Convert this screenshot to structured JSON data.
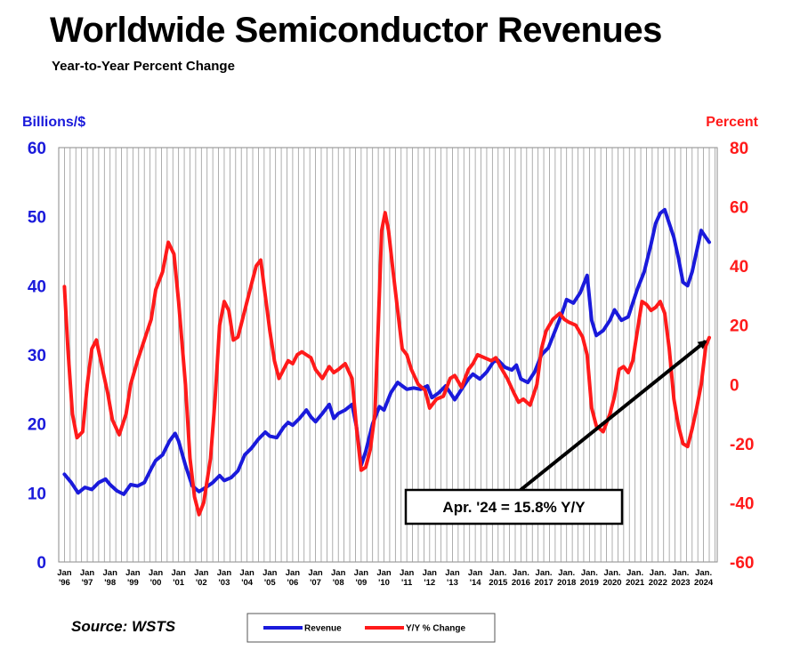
{
  "title": "Worldwide Semiconductor Revenues",
  "subtitle": "Year-to-Year Percent Change",
  "source": "Source: WSTS",
  "chart_data": {
    "type": "line",
    "title": "Worldwide Semiconductor Revenues",
    "subtitle": "Year-to-Year Percent Change",
    "left_axis": {
      "label": "Billions/$",
      "min": 0,
      "max": 60,
      "ticks": [
        "0",
        "10",
        "20",
        "30",
        "40",
        "50",
        "60"
      ],
      "color": "#1a1adb"
    },
    "right_axis": {
      "label": "Percent",
      "min": -60,
      "max": 80,
      "ticks": [
        "-60",
        "-40",
        "-20",
        "0",
        "20",
        "40",
        "60",
        "80"
      ],
      "color": "#ff1a1a"
    },
    "x_range": [
      1996.0,
      2024.25
    ],
    "x_ticks": [
      {
        "month": "Jan",
        "year": "'96"
      },
      {
        "month": "Jan",
        "year": "'97"
      },
      {
        "month": "Jan",
        "year": "'98"
      },
      {
        "month": "Jan",
        "year": "'99"
      },
      {
        "month": "Jan",
        "year": "'00"
      },
      {
        "month": "Jan",
        "year": "'01"
      },
      {
        "month": "Jan",
        "year": "'02"
      },
      {
        "month": "Jan",
        "year": "'03"
      },
      {
        "month": "Jan",
        "year": "'04"
      },
      {
        "month": "Jan",
        "year": "'05"
      },
      {
        "month": "Jan",
        "year": "'06"
      },
      {
        "month": "Jan",
        "year": "'07"
      },
      {
        "month": "Jan",
        "year": "'08"
      },
      {
        "month": "Jan",
        "year": "'09"
      },
      {
        "month": "Jan",
        "year": "'10"
      },
      {
        "month": "Jan",
        "year": "'11"
      },
      {
        "month": "Jan",
        "year": "'12"
      },
      {
        "month": "Jan",
        "year": "'13"
      },
      {
        "month": "Jan",
        "year": "'14"
      },
      {
        "month": "Jan.",
        "year": "2015"
      },
      {
        "month": "Jan.",
        "year": "2016"
      },
      {
        "month": "Jan.",
        "year": "2017"
      },
      {
        "month": "Jan.",
        "year": "2018"
      },
      {
        "month": "Jan.",
        "year": "2019"
      },
      {
        "month": "Jan.",
        "year": "2020"
      },
      {
        "month": "Jan.",
        "year": "2021"
      },
      {
        "month": "Jan.",
        "year": "2022"
      },
      {
        "month": "Jan.",
        "year": "2023"
      },
      {
        "month": "Jan.",
        "year": "2024"
      }
    ],
    "grid": "vertical",
    "series": [
      {
        "name": "Revenue",
        "axis": "left",
        "color": "#1a1adb",
        "points": [
          [
            1996.0,
            12.7
          ],
          [
            1996.3,
            11.5
          ],
          [
            1996.6,
            10.0
          ],
          [
            1996.9,
            10.8
          ],
          [
            1997.2,
            10.5
          ],
          [
            1997.5,
            11.5
          ],
          [
            1997.8,
            12.0
          ],
          [
            1998.0,
            11.2
          ],
          [
            1998.3,
            10.3
          ],
          [
            1998.6,
            9.8
          ],
          [
            1998.9,
            11.2
          ],
          [
            1999.2,
            11.0
          ],
          [
            1999.5,
            11.5
          ],
          [
            1999.8,
            13.5
          ],
          [
            2000.0,
            14.7
          ],
          [
            2000.3,
            15.5
          ],
          [
            2000.6,
            17.5
          ],
          [
            2000.85,
            18.6
          ],
          [
            2001.0,
            17.5
          ],
          [
            2001.3,
            14.0
          ],
          [
            2001.6,
            11.0
          ],
          [
            2001.9,
            10.2
          ],
          [
            2002.2,
            10.8
          ],
          [
            2002.5,
            11.5
          ],
          [
            2002.8,
            12.5
          ],
          [
            2003.0,
            11.8
          ],
          [
            2003.3,
            12.2
          ],
          [
            2003.6,
            13.2
          ],
          [
            2003.9,
            15.5
          ],
          [
            2004.2,
            16.5
          ],
          [
            2004.5,
            17.8
          ],
          [
            2004.8,
            18.8
          ],
          [
            2005.0,
            18.2
          ],
          [
            2005.3,
            18.0
          ],
          [
            2005.6,
            19.5
          ],
          [
            2005.8,
            20.2
          ],
          [
            2006.0,
            19.8
          ],
          [
            2006.3,
            20.8
          ],
          [
            2006.6,
            22.0
          ],
          [
            2006.8,
            21.0
          ],
          [
            2007.0,
            20.3
          ],
          [
            2007.3,
            21.5
          ],
          [
            2007.6,
            22.8
          ],
          [
            2007.8,
            20.8
          ],
          [
            2008.0,
            21.5
          ],
          [
            2008.3,
            22.0
          ],
          [
            2008.6,
            22.8
          ],
          [
            2008.8,
            19.5
          ],
          [
            2009.0,
            14.0
          ],
          [
            2009.2,
            16.0
          ],
          [
            2009.5,
            20.0
          ],
          [
            2009.8,
            22.5
          ],
          [
            2010.0,
            22.0
          ],
          [
            2010.3,
            24.5
          ],
          [
            2010.6,
            26.0
          ],
          [
            2010.8,
            25.5
          ],
          [
            2011.0,
            25.0
          ],
          [
            2011.3,
            25.2
          ],
          [
            2011.6,
            25.0
          ],
          [
            2011.9,
            25.5
          ],
          [
            2012.1,
            23.8
          ],
          [
            2012.4,
            24.5
          ],
          [
            2012.7,
            25.5
          ],
          [
            2012.9,
            24.5
          ],
          [
            2013.1,
            23.5
          ],
          [
            2013.4,
            25.0
          ],
          [
            2013.7,
            26.5
          ],
          [
            2013.9,
            27.2
          ],
          [
            2014.2,
            26.5
          ],
          [
            2014.5,
            27.5
          ],
          [
            2014.8,
            29.0
          ],
          [
            2015.0,
            29.2
          ],
          [
            2015.3,
            28.2
          ],
          [
            2015.6,
            27.8
          ],
          [
            2015.8,
            28.5
          ],
          [
            2016.0,
            26.5
          ],
          [
            2016.3,
            26.0
          ],
          [
            2016.6,
            27.5
          ],
          [
            2016.9,
            30.0
          ],
          [
            2017.2,
            31.0
          ],
          [
            2017.5,
            33.5
          ],
          [
            2017.8,
            36.0
          ],
          [
            2018.0,
            38.0
          ],
          [
            2018.3,
            37.5
          ],
          [
            2018.6,
            39.0
          ],
          [
            2018.9,
            41.5
          ],
          [
            2019.1,
            35.0
          ],
          [
            2019.3,
            32.8
          ],
          [
            2019.6,
            33.5
          ],
          [
            2019.9,
            35.0
          ],
          [
            2020.1,
            36.5
          ],
          [
            2020.4,
            35.0
          ],
          [
            2020.7,
            35.5
          ],
          [
            2020.9,
            37.5
          ],
          [
            2021.1,
            39.5
          ],
          [
            2021.4,
            42.0
          ],
          [
            2021.7,
            46.0
          ],
          [
            2021.9,
            49.0
          ],
          [
            2022.1,
            50.5
          ],
          [
            2022.3,
            51.0
          ],
          [
            2022.5,
            49.0
          ],
          [
            2022.7,
            47.0
          ],
          [
            2022.9,
            44.0
          ],
          [
            2023.1,
            40.5
          ],
          [
            2023.3,
            40.0
          ],
          [
            2023.5,
            42.0
          ],
          [
            2023.7,
            45.0
          ],
          [
            2023.9,
            48.0
          ],
          [
            2024.1,
            47.0
          ],
          [
            2024.25,
            46.3
          ]
        ]
      },
      {
        "name": "Y/Y % Change",
        "axis": "right",
        "color": "#ff1a1a",
        "points": [
          [
            1996.0,
            33.0
          ],
          [
            1996.15,
            12.0
          ],
          [
            1996.35,
            -10.0
          ],
          [
            1996.55,
            -18.0
          ],
          [
            1996.8,
            -16.0
          ],
          [
            1997.0,
            0.0
          ],
          [
            1997.2,
            12.0
          ],
          [
            1997.4,
            15.0
          ],
          [
            1997.7,
            4.0
          ],
          [
            1997.9,
            -3.0
          ],
          [
            1998.1,
            -12.0
          ],
          [
            1998.4,
            -17.0
          ],
          [
            1998.7,
            -10.0
          ],
          [
            1998.9,
            0.0
          ],
          [
            1999.2,
            8.0
          ],
          [
            1999.5,
            15.0
          ],
          [
            1999.8,
            22.0
          ],
          [
            2000.0,
            32.0
          ],
          [
            2000.3,
            38.0
          ],
          [
            2000.55,
            48.0
          ],
          [
            2000.8,
            44.0
          ],
          [
            2001.0,
            28.0
          ],
          [
            2001.3,
            0.0
          ],
          [
            2001.5,
            -25.0
          ],
          [
            2001.7,
            -38.0
          ],
          [
            2001.9,
            -44.0
          ],
          [
            2002.1,
            -40.0
          ],
          [
            2002.4,
            -25.0
          ],
          [
            2002.6,
            -5.0
          ],
          [
            2002.8,
            20.0
          ],
          [
            2003.0,
            28.0
          ],
          [
            2003.2,
            25.0
          ],
          [
            2003.4,
            15.0
          ],
          [
            2003.6,
            16.0
          ],
          [
            2003.8,
            22.0
          ],
          [
            2004.0,
            28.0
          ],
          [
            2004.2,
            34.0
          ],
          [
            2004.4,
            40.0
          ],
          [
            2004.6,
            42.0
          ],
          [
            2004.8,
            30.0
          ],
          [
            2005.0,
            18.0
          ],
          [
            2005.2,
            8.0
          ],
          [
            2005.4,
            2.0
          ],
          [
            2005.6,
            5.0
          ],
          [
            2005.8,
            8.0
          ],
          [
            2006.0,
            7.0
          ],
          [
            2006.2,
            10.0
          ],
          [
            2006.4,
            11.0
          ],
          [
            2006.6,
            10.0
          ],
          [
            2006.8,
            9.0
          ],
          [
            2007.0,
            5.0
          ],
          [
            2007.3,
            2.0
          ],
          [
            2007.6,
            6.0
          ],
          [
            2007.8,
            4.0
          ],
          [
            2008.0,
            5.0
          ],
          [
            2008.3,
            7.0
          ],
          [
            2008.6,
            2.0
          ],
          [
            2008.8,
            -15.0
          ],
          [
            2009.0,
            -29.0
          ],
          [
            2009.2,
            -28.0
          ],
          [
            2009.4,
            -22.0
          ],
          [
            2009.6,
            -10.0
          ],
          [
            2009.75,
            20.0
          ],
          [
            2009.9,
            52.0
          ],
          [
            2010.05,
            58.0
          ],
          [
            2010.2,
            52.0
          ],
          [
            2010.4,
            38.0
          ],
          [
            2010.6,
            25.0
          ],
          [
            2010.8,
            12.0
          ],
          [
            2011.0,
            10.0
          ],
          [
            2011.2,
            5.0
          ],
          [
            2011.5,
            0.0
          ],
          [
            2011.8,
            -2.0
          ],
          [
            2012.0,
            -8.0
          ],
          [
            2012.3,
            -5.0
          ],
          [
            2012.6,
            -4.0
          ],
          [
            2012.9,
            2.0
          ],
          [
            2013.1,
            3.0
          ],
          [
            2013.4,
            -1.0
          ],
          [
            2013.7,
            5.0
          ],
          [
            2013.9,
            7.0
          ],
          [
            2014.1,
            10.0
          ],
          [
            2014.4,
            9.0
          ],
          [
            2014.7,
            8.0
          ],
          [
            2014.9,
            9.0
          ],
          [
            2015.1,
            6.0
          ],
          [
            2015.4,
            2.0
          ],
          [
            2015.7,
            -3.0
          ],
          [
            2015.9,
            -6.0
          ],
          [
            2016.1,
            -5.0
          ],
          [
            2016.4,
            -7.0
          ],
          [
            2016.7,
            0.0
          ],
          [
            2016.9,
            12.0
          ],
          [
            2017.1,
            18.0
          ],
          [
            2017.4,
            22.0
          ],
          [
            2017.7,
            24.0
          ],
          [
            2017.9,
            22.0
          ],
          [
            2018.1,
            21.0
          ],
          [
            2018.4,
            20.0
          ],
          [
            2018.7,
            16.0
          ],
          [
            2018.9,
            10.0
          ],
          [
            2019.1,
            -8.0
          ],
          [
            2019.3,
            -14.0
          ],
          [
            2019.6,
            -16.0
          ],
          [
            2019.9,
            -10.0
          ],
          [
            2020.1,
            -4.0
          ],
          [
            2020.3,
            5.0
          ],
          [
            2020.5,
            6.0
          ],
          [
            2020.7,
            4.0
          ],
          [
            2020.9,
            8.0
          ],
          [
            2021.1,
            18.0
          ],
          [
            2021.3,
            28.0
          ],
          [
            2021.5,
            27.0
          ],
          [
            2021.7,
            25.0
          ],
          [
            2021.9,
            26.0
          ],
          [
            2022.1,
            28.0
          ],
          [
            2022.3,
            24.0
          ],
          [
            2022.5,
            12.0
          ],
          [
            2022.7,
            -5.0
          ],
          [
            2022.9,
            -14.0
          ],
          [
            2023.1,
            -20.0
          ],
          [
            2023.3,
            -21.0
          ],
          [
            2023.5,
            -15.0
          ],
          [
            2023.7,
            -8.0
          ],
          [
            2023.9,
            0.0
          ],
          [
            2024.1,
            13.0
          ],
          [
            2024.25,
            15.8
          ]
        ]
      }
    ],
    "annotations": [
      {
        "text": "Apr. '24 = 15.8% Y/Y",
        "points_to": [
          2024.25,
          15.8
        ]
      }
    ],
    "legend": {
      "position": "bottom-center",
      "entries": [
        "Revenue",
        "Y/Y % Change"
      ]
    }
  }
}
